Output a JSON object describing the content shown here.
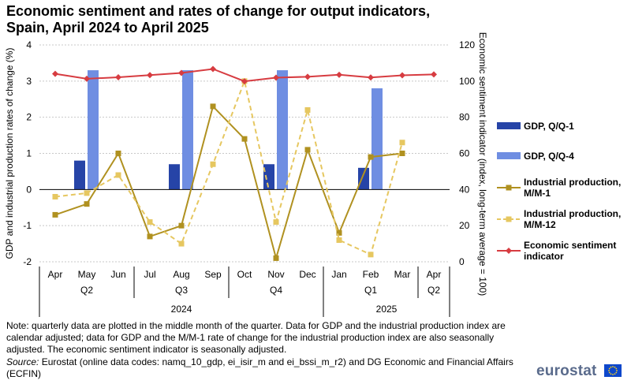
{
  "title_line1": "Economic sentiment and rates of change for output indicators,",
  "title_line2": "Spain, April 2024 to April 2025",
  "note": "Note: quarterly data are plotted in the middle month of the quarter. Data for GDP and the industrial production index are calendar adjusted; data for GDP and the M/M-1 rate of change for the industrial production index are also seasonally adjusted. The economic sentiment indicator is seasonally adjusted.",
  "source_label": "Source:",
  "source_text": "Eurostat (online data codes: namq_10_gdp, ei_isir_m and ei_bssi_m_r2) and DG Economic and Financial Affairs (ECFIN)",
  "brand": "eurostat",
  "chart_data": {
    "type": "bar+line",
    "title": "Economic sentiment and rates of change for output indicators, Spain, April 2024 to April 2025",
    "categories": [
      "Apr",
      "May",
      "Jun",
      "Jul",
      "Aug",
      "Sep",
      "Oct",
      "Nov",
      "Dec",
      "Jan",
      "Feb",
      "Mar",
      "Apr"
    ],
    "quarters": [
      {
        "label": "Q2",
        "start": 0,
        "end": 2
      },
      {
        "label": "Q3",
        "start": 3,
        "end": 5
      },
      {
        "label": "Q4",
        "start": 6,
        "end": 8
      },
      {
        "label": "Q1",
        "start": 9,
        "end": 11
      },
      {
        "label": "Q2",
        "start": 12,
        "end": 12
      }
    ],
    "years": [
      {
        "label": "2024",
        "start": 0,
        "end": 8
      },
      {
        "label": "2025",
        "start": 9,
        "end": 12
      }
    ],
    "y_left": {
      "label": "GDP and industrial production rates of change (%)",
      "min": -2,
      "max": 4,
      "ticks": [
        -2,
        -1,
        0,
        1,
        2,
        3,
        4
      ]
    },
    "y_right": {
      "label": "Economic sentiment indicator (index, long-term average = 100)",
      "min": 0,
      "max": 120,
      "ticks": [
        0,
        20,
        40,
        60,
        80,
        100,
        120
      ]
    },
    "series": [
      {
        "name": "GDP, Q/Q-1",
        "kind": "bar",
        "axis": "left",
        "color": "#2644a7",
        "values": [
          null,
          0.8,
          null,
          null,
          0.7,
          null,
          null,
          0.7,
          null,
          null,
          0.6,
          null,
          null
        ]
      },
      {
        "name": "GDP, Q/Q-4",
        "kind": "bar",
        "axis": "left",
        "color": "#6f8ee2",
        "values": [
          null,
          3.3,
          null,
          null,
          3.3,
          null,
          null,
          3.3,
          null,
          null,
          2.8,
          null,
          null
        ]
      },
      {
        "name": "Industrial production, M/M-1",
        "kind": "line",
        "style": "solid",
        "axis": "left",
        "color": "#b09120",
        "values": [
          -0.7,
          -0.4,
          1.0,
          -1.3,
          -1.0,
          2.3,
          1.4,
          -1.9,
          1.1,
          -1.2,
          0.9,
          1.0,
          null
        ]
      },
      {
        "name": "Industrial production, M/M-12",
        "kind": "line",
        "style": "dashed",
        "axis": "left",
        "color": "#e6c760",
        "values": [
          -0.2,
          -0.1,
          0.4,
          -0.9,
          -1.5,
          0.7,
          3.0,
          -0.9,
          2.2,
          -1.4,
          -1.8,
          1.3,
          null
        ]
      },
      {
        "name": "Economic sentiment indicator",
        "kind": "line",
        "style": "solid",
        "axis": "right",
        "color": "#d73c41",
        "values": [
          104.0,
          101.3,
          102.1,
          103.3,
          104.5,
          106.7,
          99.9,
          101.9,
          102.4,
          103.5,
          102.0,
          103.2,
          103.7
        ]
      }
    ],
    "legend_position": "right",
    "gridlines": true
  }
}
